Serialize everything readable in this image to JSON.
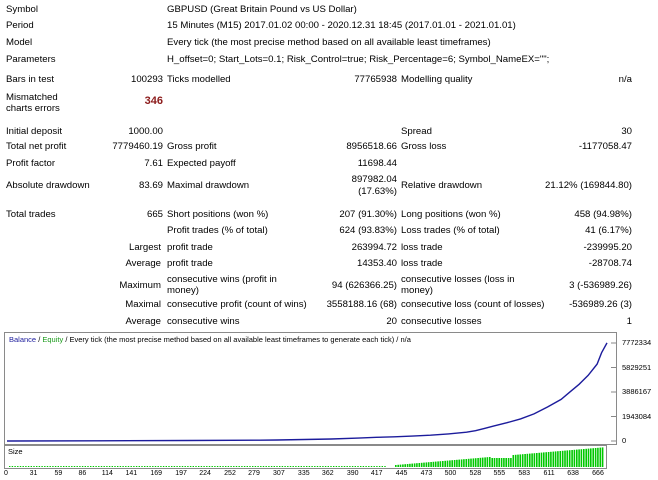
{
  "report": {
    "symbol_label": "Symbol",
    "symbol_value": "GBPUSD (Great Britain Pound vs US Dollar)",
    "period_label": "Period",
    "period_value": "15 Minutes (M15) 2017.01.02 00:00 - 2020.12.31 18:45 (2017.01.01 - 2021.01.01)",
    "model_label": "Model",
    "model_value": "Every tick (the most precise method based on all available least timeframes)",
    "parameters_label": "Parameters",
    "parameters_value": "H_offset=0; Start_Lots=0.1; Risk_Control=true; Risk_Percentage=6; Symbol_NameEX=\"\";",
    "bars_label": "Bars in test",
    "bars_value": "100293",
    "ticks_label": "Ticks modelled",
    "ticks_value": "77765938",
    "quality_label": "Modelling quality",
    "quality_value": "n/a",
    "mismatch_label": "Mismatched charts errors",
    "mismatch_value": "346",
    "deposit_label": "Initial deposit",
    "deposit_value": "1000.00",
    "spread_label": "Spread",
    "spread_value": "30",
    "net_label": "Total net profit",
    "net_value": "7779460.19",
    "gross_profit_label": "Gross profit",
    "gross_profit_value": "8956518.66",
    "gross_loss_label": "Gross loss",
    "gross_loss_value": "-1177058.47",
    "pf_label": "Profit factor",
    "pf_value": "7.61",
    "payoff_label": "Expected payoff",
    "payoff_value": "11698.44",
    "abs_dd_label": "Absolute drawdown",
    "abs_dd_value": "83.69",
    "max_dd_label": "Maximal drawdown",
    "max_dd_value_1": "897982.04",
    "max_dd_value_2": "(17.63%)",
    "rel_dd_label": "Relative drawdown",
    "rel_dd_value": "21.12% (169844.80)",
    "trades_label": "Total trades",
    "trades_value": "665",
    "short_label": "Short positions (won %)",
    "short_value": "207 (91.30%)",
    "long_label": "Long positions (won %)",
    "long_value": "458 (94.98%)",
    "pt_label": "Profit trades (% of total)",
    "pt_value": "624 (93.83%)",
    "lt_label": "Loss trades (% of total)",
    "lt_value": "41 (6.17%)",
    "largest_label": "Largest",
    "largest_pt_label": "profit trade",
    "largest_pt_value": "263994.72",
    "largest_lt_label": "loss trade",
    "largest_lt_value": "-239995.20",
    "average_label": "Average",
    "average_pt_label": "profit trade",
    "average_pt_value": "14353.40",
    "average_lt_label": "loss trade",
    "average_lt_value": "-28708.74",
    "maximum_label": "Maximum",
    "max_cw_label": "consecutive wins (profit in money)",
    "max_cw_value": "94 (626366.25)",
    "max_cl_label": "consecutive losses (loss in money)",
    "max_cl_value": "3 (-536989.26)",
    "maximal_label": "Maximal",
    "maximal_cp_label": "consecutive profit (count of wins)",
    "maximal_cp_value": "3558188.16 (68)",
    "maximal_cl_label": "consecutive loss (count of losses)",
    "maximal_cl_value": "-536989.26 (3)",
    "avg2_label": "Average",
    "avg_cw_label": "consecutive wins",
    "avg_cw_value": "20",
    "avg_cl_label": "consecutive losses",
    "avg_cl_value": "1"
  },
  "chart": {
    "legend_balance": "Balance",
    "legend_sep": " / ",
    "legend_equity": "Equity",
    "legend_rest": " / Every tick (the most precise method based on all available least timeframes to generate each tick) / n/a",
    "size_label": "Size",
    "colors": {
      "balance": "#1c1c9c",
      "equity": "#1a9a1a",
      "size_bars": "#00c800"
    }
  },
  "chart_data": {
    "type": "line",
    "title": "",
    "xlabel": "",
    "ylabel": "",
    "x_ticks": [
      "0",
      "31",
      "59",
      "86",
      "114",
      "141",
      "169",
      "197",
      "224",
      "252",
      "279",
      "307",
      "335",
      "362",
      "390",
      "417",
      "445",
      "473",
      "500",
      "528",
      "555",
      "583",
      "611",
      "638",
      "666"
    ],
    "y_ticks": [
      "7772334",
      "5829251",
      "3886167",
      "1943084",
      "0"
    ],
    "xlim": [
      0,
      666
    ],
    "ylim": [
      0,
      7772334
    ],
    "series": [
      {
        "name": "Balance",
        "x": [
          0,
          100,
          200,
          280,
          300,
          330,
          360,
          390,
          410,
          430,
          450,
          470,
          490,
          510,
          520,
          530,
          540,
          555,
          570,
          585,
          600,
          615,
          625,
          635,
          645,
          655,
          660,
          666
        ],
        "y": [
          1000,
          15000,
          40000,
          60000,
          80000,
          120000,
          160000,
          230000,
          290000,
          330000,
          390000,
          460000,
          560000,
          700000,
          820000,
          1000000,
          1180000,
          1450000,
          1750000,
          2150000,
          2700000,
          3300000,
          3900000,
          4500000,
          5200000,
          6100000,
          7000000,
          7780460
        ]
      },
      {
        "name": "Size",
        "note": "",
        "x": [],
        "y": []
      }
    ],
    "grid": false,
    "legend": "top-left"
  }
}
